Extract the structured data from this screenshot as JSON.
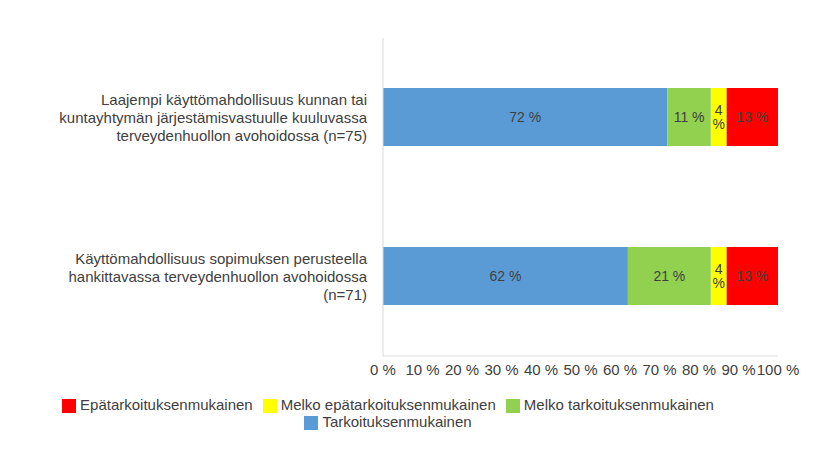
{
  "chart_data": {
    "type": "bar",
    "orientation": "horizontal",
    "stacked": true,
    "data_labels": true,
    "grid": false,
    "legend": "bottom",
    "categories": [
      "Laajempi käyttömahdollisuus kunnan tai kuntayhtymän järjestämisvastuulle kuuluvassa terveydenhuollon avohoidossa (n=75)",
      "Käyttömahdollisuus sopimuksen perusteella hankittavassa terveydenhuollon avohoidossa (n=71)"
    ],
    "series": [
      {
        "name": "Tarkoituksenmukainen",
        "color": "#5B9BD5",
        "values": [
          72,
          62
        ],
        "value_labels": [
          "72 %",
          "62 %"
        ]
      },
      {
        "name": "Melko tarkoituksenmukainen",
        "color": "#92D050",
        "values": [
          11,
          21
        ],
        "value_labels": [
          "11 %",
          "21 %"
        ]
      },
      {
        "name": "Melko epätarkoituksenmukainen",
        "color": "#FFFF00",
        "values": [
          4,
          4
        ],
        "value_labels": [
          "4 %",
          "4 %"
        ]
      },
      {
        "name": "Epätarkoituksenmukainen",
        "color": "#FF0000",
        "values": [
          13,
          13
        ],
        "value_labels": [
          "13 %",
          "13 %"
        ]
      }
    ],
    "xlim": [
      0,
      100
    ],
    "xticks": [
      {
        "value": 0,
        "label": "0 %"
      },
      {
        "value": 10,
        "label": "10 %"
      },
      {
        "value": 20,
        "label": "20 %"
      },
      {
        "value": 30,
        "label": "30 %"
      },
      {
        "value": 40,
        "label": "40 %"
      },
      {
        "value": 50,
        "label": "50 %"
      },
      {
        "value": 60,
        "label": "60 %"
      },
      {
        "value": 70,
        "label": "70 %"
      },
      {
        "value": 80,
        "label": "80 %"
      },
      {
        "value": 90,
        "label": "90 %"
      },
      {
        "value": 100,
        "label": "100 %"
      }
    ]
  }
}
